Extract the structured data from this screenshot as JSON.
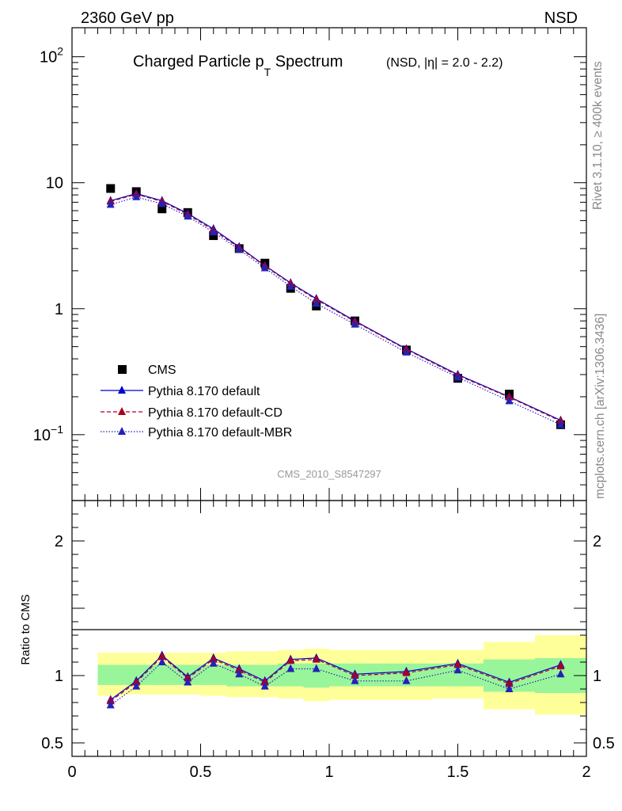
{
  "header": {
    "left": "2360 GeV pp",
    "right": "NSD"
  },
  "side_labels": {
    "rivet": "Rivet 3.1.10, ≥ 400k events",
    "mcplots": "mcplots.cern.ch [arXiv:1306.3436]"
  },
  "chart_data": [
    {
      "type": "scatter",
      "panel": "main",
      "title": "Charged Particle p",
      "title_sub": "T",
      "title_rest": " Spectrum",
      "title_cut": "(NSD, |η| = 2.0 - 2.2)",
      "watermark": "CMS_2010_S8547297",
      "yscale": "log",
      "xlim": [
        0,
        2
      ],
      "ylim": [
        0.03,
        170
      ],
      "y_ticks": [
        {
          "value": 100,
          "base": "10",
          "exp": "2"
        },
        {
          "value": 10,
          "base": "10",
          "exp": ""
        },
        {
          "value": 1,
          "base": "1",
          "exp": ""
        },
        {
          "value": 0.1,
          "base": "10",
          "exp": "−1"
        }
      ],
      "legend_position": "bottom-left",
      "series": [
        {
          "name": "CMS",
          "marker": "square",
          "color": "#000000",
          "line": "none",
          "x": [
            0.15,
            0.25,
            0.35,
            0.45,
            0.55,
            0.65,
            0.75,
            0.85,
            0.95,
            1.1,
            1.3,
            1.5,
            1.7,
            1.9
          ],
          "y": [
            9.0,
            8.5,
            6.2,
            5.8,
            3.8,
            3.0,
            2.3,
            1.45,
            1.05,
            0.8,
            0.47,
            0.28,
            0.21,
            0.12
          ]
        },
        {
          "name": "Pythia 8.170 default",
          "marker": "triangle",
          "color": "#0000cc",
          "line": "solid",
          "x": [
            0.15,
            0.25,
            0.35,
            0.45,
            0.55,
            0.65,
            0.75,
            0.85,
            0.95,
            1.1,
            1.3,
            1.5,
            1.7,
            1.9
          ],
          "y": [
            7.2,
            8.2,
            7.2,
            5.7,
            4.3,
            3.1,
            2.2,
            1.6,
            1.2,
            0.8,
            0.48,
            0.3,
            0.2,
            0.13
          ]
        },
        {
          "name": "Pythia 8.170 default-CD",
          "marker": "triangle",
          "color": "#aa0022",
          "line": "dashed",
          "x": [
            0.15,
            0.25,
            0.35,
            0.45,
            0.55,
            0.65,
            0.75,
            0.85,
            0.95,
            1.1,
            1.3,
            1.5,
            1.7,
            1.9
          ],
          "y": [
            7.1,
            8.1,
            7.1,
            5.6,
            4.2,
            3.05,
            2.18,
            1.58,
            1.18,
            0.79,
            0.475,
            0.295,
            0.198,
            0.128
          ]
        },
        {
          "name": "Pythia 8.170 default-MBR",
          "marker": "triangle",
          "color": "#2222bb",
          "line": "dotted",
          "x": [
            0.15,
            0.25,
            0.35,
            0.45,
            0.55,
            0.65,
            0.75,
            0.85,
            0.95,
            1.1,
            1.3,
            1.5,
            1.7,
            1.9
          ],
          "y": [
            6.7,
            7.7,
            6.8,
            5.4,
            4.05,
            2.95,
            2.1,
            1.5,
            1.1,
            0.75,
            0.45,
            0.285,
            0.185,
            0.12
          ]
        }
      ]
    },
    {
      "type": "scatter",
      "panel": "ratio",
      "ylabel": "Ratio to CMS",
      "xlim": [
        0,
        2
      ],
      "ylim": [
        0.4,
        2.3
      ],
      "x_ticks": [
        {
          "value": 0,
          "label": "0"
        },
        {
          "value": 0.5,
          "label": "0.5"
        },
        {
          "value": 1,
          "label": "1"
        },
        {
          "value": 1.5,
          "label": "1.5"
        },
        {
          "value": 2,
          "label": "2"
        }
      ],
      "y_ticks": [
        {
          "value": 2,
          "label": "2"
        },
        {
          "value": 1,
          "label": "1"
        },
        {
          "value": 0.5,
          "label": "0.5"
        }
      ],
      "bands": {
        "bins": [
          0.1,
          0.2,
          0.3,
          0.4,
          0.5,
          0.6,
          0.7,
          0.8,
          0.9,
          1.0,
          1.2,
          1.4,
          1.6,
          1.8,
          2.0
        ],
        "stat_lo": [
          0.93,
          0.93,
          0.93,
          0.93,
          0.93,
          0.92,
          0.92,
          0.92,
          0.91,
          0.92,
          0.92,
          0.92,
          0.88,
          0.87
        ],
        "stat_hi": [
          1.08,
          1.08,
          1.08,
          1.08,
          1.08,
          1.08,
          1.08,
          1.09,
          1.09,
          1.09,
          1.09,
          1.09,
          1.12,
          1.13
        ],
        "total_lo": [
          0.85,
          0.86,
          0.86,
          0.86,
          0.85,
          0.84,
          0.84,
          0.83,
          0.81,
          0.82,
          0.82,
          0.83,
          0.75,
          0.71
        ],
        "total_hi": [
          1.17,
          1.17,
          1.17,
          1.17,
          1.17,
          1.18,
          1.18,
          1.19,
          1.2,
          1.19,
          1.19,
          1.19,
          1.25,
          1.3
        ],
        "stat_color": "#99f599",
        "total_color": "#ffff99"
      },
      "series": [
        {
          "name": "Pythia 8.170 default",
          "color": "#0000cc",
          "line": "solid",
          "x": [
            0.15,
            0.25,
            0.35,
            0.45,
            0.55,
            0.65,
            0.75,
            0.85,
            0.95,
            1.1,
            1.3,
            1.5,
            1.7,
            1.9
          ],
          "y": [
            0.82,
            0.96,
            1.15,
            0.99,
            1.13,
            1.05,
            0.96,
            1.12,
            1.13,
            1.01,
            1.03,
            1.09,
            0.95,
            1.08
          ]
        },
        {
          "name": "Pythia 8.170 default-CD",
          "color": "#aa0022",
          "line": "dashed",
          "x": [
            0.15,
            0.25,
            0.35,
            0.45,
            0.55,
            0.65,
            0.75,
            0.85,
            0.95,
            1.1,
            1.3,
            1.5,
            1.7,
            1.9
          ],
          "y": [
            0.81,
            0.95,
            1.14,
            0.98,
            1.12,
            1.04,
            0.95,
            1.11,
            1.12,
            1.0,
            1.02,
            1.08,
            0.94,
            1.07
          ]
        },
        {
          "name": "Pythia 8.170 default-MBR",
          "color": "#2222bb",
          "line": "dotted",
          "x": [
            0.15,
            0.25,
            0.35,
            0.45,
            0.55,
            0.65,
            0.75,
            0.85,
            0.95,
            1.1,
            1.3,
            1.5,
            1.7,
            1.9
          ],
          "y": [
            0.78,
            0.92,
            1.1,
            0.95,
            1.09,
            1.01,
            0.92,
            1.05,
            1.05,
            0.96,
            0.96,
            1.04,
            0.9,
            1.01
          ]
        }
      ]
    }
  ]
}
